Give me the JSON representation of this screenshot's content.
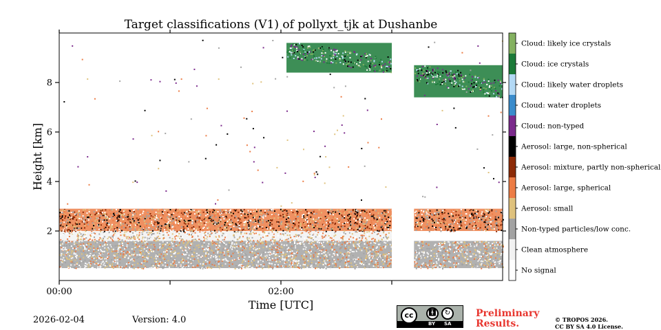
{
  "chart_data": {
    "type": "heatmap",
    "title": "Target classifications (V1) of pollyxt_tjk at Dushanbe",
    "xlabel": "Time [UTC]",
    "ylabel": "Height [km]",
    "xlim_hours": [
      0,
      4
    ],
    "ylim_km": [
      0,
      10
    ],
    "x_ticks": [
      {
        "value": 0,
        "label": "00:00"
      },
      {
        "value": 1,
        "label": ""
      },
      {
        "value": 2,
        "label": "02:00"
      },
      {
        "value": 3,
        "label": ""
      }
    ],
    "y_ticks": [
      {
        "value": 2,
        "label": "2"
      },
      {
        "value": 4,
        "label": "4"
      },
      {
        "value": 6,
        "label": "6"
      },
      {
        "value": 8,
        "label": "8"
      }
    ],
    "data_gap_hours": [
      3.0,
      3.2
    ],
    "colorbar": [
      {
        "label": "No signal",
        "color": "#ffffff"
      },
      {
        "label": "Clean atmosphere",
        "color": "#f2f2f2"
      },
      {
        "label": "Non-typed particles/low conc.",
        "color": "#a3a3a3"
      },
      {
        "label": "Aerosol: small",
        "color": "#dfc27d"
      },
      {
        "label": "Aerosol: large, spherical",
        "color": "#ec7c45"
      },
      {
        "label": "Aerosol: mixture, partly non-spherical",
        "color": "#8c2a07"
      },
      {
        "label": "Aerosol: large, non-spherical",
        "color": "#000000"
      },
      {
        "label": "Cloud: non-typed",
        "color": "#7b2a8c"
      },
      {
        "label": "Cloud: water droplets",
        "color": "#3a8ccc"
      },
      {
        "label": "Cloud: likely water droplets",
        "color": "#b3d9f5"
      },
      {
        "label": "Cloud: ice crystals",
        "color": "#1b7a38"
      },
      {
        "label": "Cloud: likely ice crystals",
        "color": "#84b160"
      }
    ],
    "regions": [
      {
        "class": "Non-typed particles/low conc.",
        "t_start": 0.0,
        "t_end": 3.0,
        "h_bottom": 0.5,
        "h_top": 1.6
      },
      {
        "class": "Clean atmosphere",
        "t_start": 0.0,
        "t_end": 3.0,
        "h_bottom": 1.6,
        "h_top": 2.0
      },
      {
        "class": "Aerosol: large, spherical",
        "t_start": 0.0,
        "t_end": 3.0,
        "h_bottom": 2.0,
        "h_top": 2.9
      },
      {
        "class": "Non-typed particles/low conc.",
        "t_start": 3.2,
        "t_end": 4.0,
        "h_bottom": 0.5,
        "h_top": 1.6
      },
      {
        "class": "Aerosol: large, spherical",
        "t_start": 3.2,
        "t_end": 4.0,
        "h_bottom": 2.0,
        "h_top": 2.9
      },
      {
        "class": "Cloud: ice crystals",
        "t_start": 2.05,
        "t_end": 3.0,
        "h_bottom": 8.4,
        "h_top": 9.6
      },
      {
        "class": "Cloud: ice crystals",
        "t_start": 3.2,
        "t_end": 4.0,
        "h_bottom": 7.4,
        "h_top": 8.7
      }
    ]
  },
  "footer": {
    "date": "2026-02-04",
    "version": "Version: 4.0",
    "preliminary": "Preliminary\nResults.",
    "copyright": "© TROPOS 2026.\nCC BY SA 4.0 License.",
    "cc_logo": "cc",
    "cc_by": "BY",
    "cc_sa": "SA"
  }
}
